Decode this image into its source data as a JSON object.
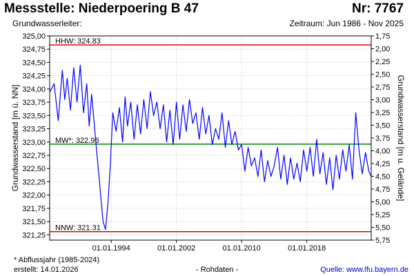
{
  "header": {
    "title": "Messstelle: Niederpoering B 47",
    "number": "Nr: 7767",
    "subtitle_left": "Grundwasserleiter:",
    "subtitle_right": "Zeitraum: Jun 1986 - Nov 2025"
  },
  "footer": {
    "footnote": "* Abflussjahr (1985-2024)",
    "created": "erstellt:  14.01.2026",
    "rawdata": "- Rohdaten -",
    "source": "Quelle:  www.lfu.bayern.de"
  },
  "colors": {
    "series": "#0000ff",
    "extreme_lines": "#e00000",
    "mean_line": "#008000",
    "grid": "#c8c8c8"
  },
  "chart_data": {
    "type": "line",
    "ylabel": "Grundwasserstand [m ü. NN]",
    "ylabel_right": "Grundwasserstand [m u. Gelände]",
    "ylim": [
      321.15,
      325.0
    ],
    "ylim_right": [
      1.75,
      5.75
    ],
    "yticks": [
      "325,00",
      "324,75",
      "324,50",
      "324,25",
      "324,00",
      "323,75",
      "323,50",
      "323,25",
      "323,00",
      "322,75",
      "322,50",
      "322,25",
      "322,00",
      "321,75",
      "321,50",
      "321,25"
    ],
    "yticks_right": [
      "1,75",
      "2,00",
      "2,25",
      "2,50",
      "2,75",
      "3,00",
      "3,25",
      "3,50",
      "3,75",
      "4,00",
      "4,25",
      "4,50",
      "4,75",
      "5,00",
      "5,25",
      "5,50",
      "5,75"
    ],
    "xlim": [
      1986.45,
      2025.9
    ],
    "xticks": [
      {
        "label": "01.01.1994",
        "x": 1994.0
      },
      {
        "label": "01.01.2002",
        "x": 2002.0
      },
      {
        "label": "01.01.2010",
        "x": 2010.0
      },
      {
        "label": "01.01.2018",
        "x": 2018.0
      }
    ],
    "grid": true,
    "reference_lines": [
      {
        "label": "HHW: 324.83",
        "y": 324.83,
        "color": "#e00000"
      },
      {
        "label": "MW*: 322.96",
        "y": 322.96,
        "color": "#008000"
      },
      {
        "label": "NNW: 321.31",
        "y": 321.31,
        "color": "#e00000"
      }
    ],
    "series": [
      {
        "color": "#0000ff",
        "x": [
          1986.5,
          1987.0,
          1987.5,
          1988.0,
          1988.3,
          1988.6,
          1989.0,
          1989.4,
          1989.8,
          1990.2,
          1990.6,
          1991.0,
          1991.3,
          1991.6,
          1992.0,
          1992.2,
          1992.5,
          1992.7,
          1993.0,
          1993.3,
          1993.6,
          1993.9,
          1994.2,
          1994.6,
          1995.0,
          1995.4,
          1995.7,
          1996.0,
          1996.4,
          1996.8,
          1997.2,
          1997.6,
          1998.0,
          1998.4,
          1998.8,
          1999.2,
          1999.6,
          2000.0,
          2000.4,
          2000.8,
          2001.2,
          2001.6,
          2002.0,
          2002.4,
          2002.8,
          2003.2,
          2003.6,
          2004.0,
          2004.4,
          2004.8,
          2005.2,
          2005.6,
          2006.0,
          2006.4,
          2006.8,
          2007.2,
          2007.6,
          2008.0,
          2008.4,
          2008.8,
          2009.2,
          2009.6,
          2010.0,
          2010.4,
          2010.8,
          2011.2,
          2011.6,
          2012.0,
          2012.4,
          2012.8,
          2013.2,
          2013.6,
          2014.0,
          2014.4,
          2014.8,
          2015.2,
          2015.6,
          2016.0,
          2016.4,
          2016.8,
          2017.2,
          2017.6,
          2018.0,
          2018.4,
          2018.8,
          2019.2,
          2019.6,
          2020.0,
          2020.4,
          2020.8,
          2021.2,
          2021.6,
          2022.0,
          2022.4,
          2022.8,
          2023.2,
          2023.6,
          2024.0,
          2024.4,
          2024.8,
          2025.2,
          2025.6,
          2025.9
        ],
        "values": [
          323.95,
          324.1,
          323.4,
          324.35,
          323.8,
          324.2,
          323.6,
          324.4,
          323.75,
          324.45,
          323.55,
          324.1,
          323.3,
          323.9,
          323.2,
          322.85,
          322.35,
          322.0,
          321.5,
          321.35,
          321.85,
          322.6,
          323.55,
          323.2,
          323.65,
          323.0,
          323.85,
          323.3,
          323.75,
          323.05,
          323.7,
          323.15,
          323.8,
          323.25,
          323.95,
          323.5,
          323.75,
          323.25,
          323.7,
          323.0,
          323.6,
          322.95,
          323.75,
          323.05,
          323.7,
          323.2,
          323.8,
          323.35,
          323.55,
          323.05,
          323.65,
          323.15,
          323.5,
          322.95,
          323.25,
          323.05,
          323.55,
          322.9,
          323.4,
          322.95,
          323.2,
          322.85,
          322.95,
          322.45,
          322.9,
          322.55,
          322.7,
          322.35,
          322.85,
          322.25,
          322.65,
          322.35,
          322.55,
          322.9,
          322.3,
          322.75,
          322.2,
          322.7,
          322.3,
          322.6,
          322.25,
          322.85,
          322.45,
          322.9,
          322.35,
          323.05,
          322.4,
          322.8,
          322.2,
          322.7,
          322.1,
          322.75,
          322.3,
          322.85,
          322.45,
          322.95,
          322.3,
          323.55,
          322.85,
          322.4,
          322.8,
          322.45,
          322.35
        ]
      }
    ]
  }
}
